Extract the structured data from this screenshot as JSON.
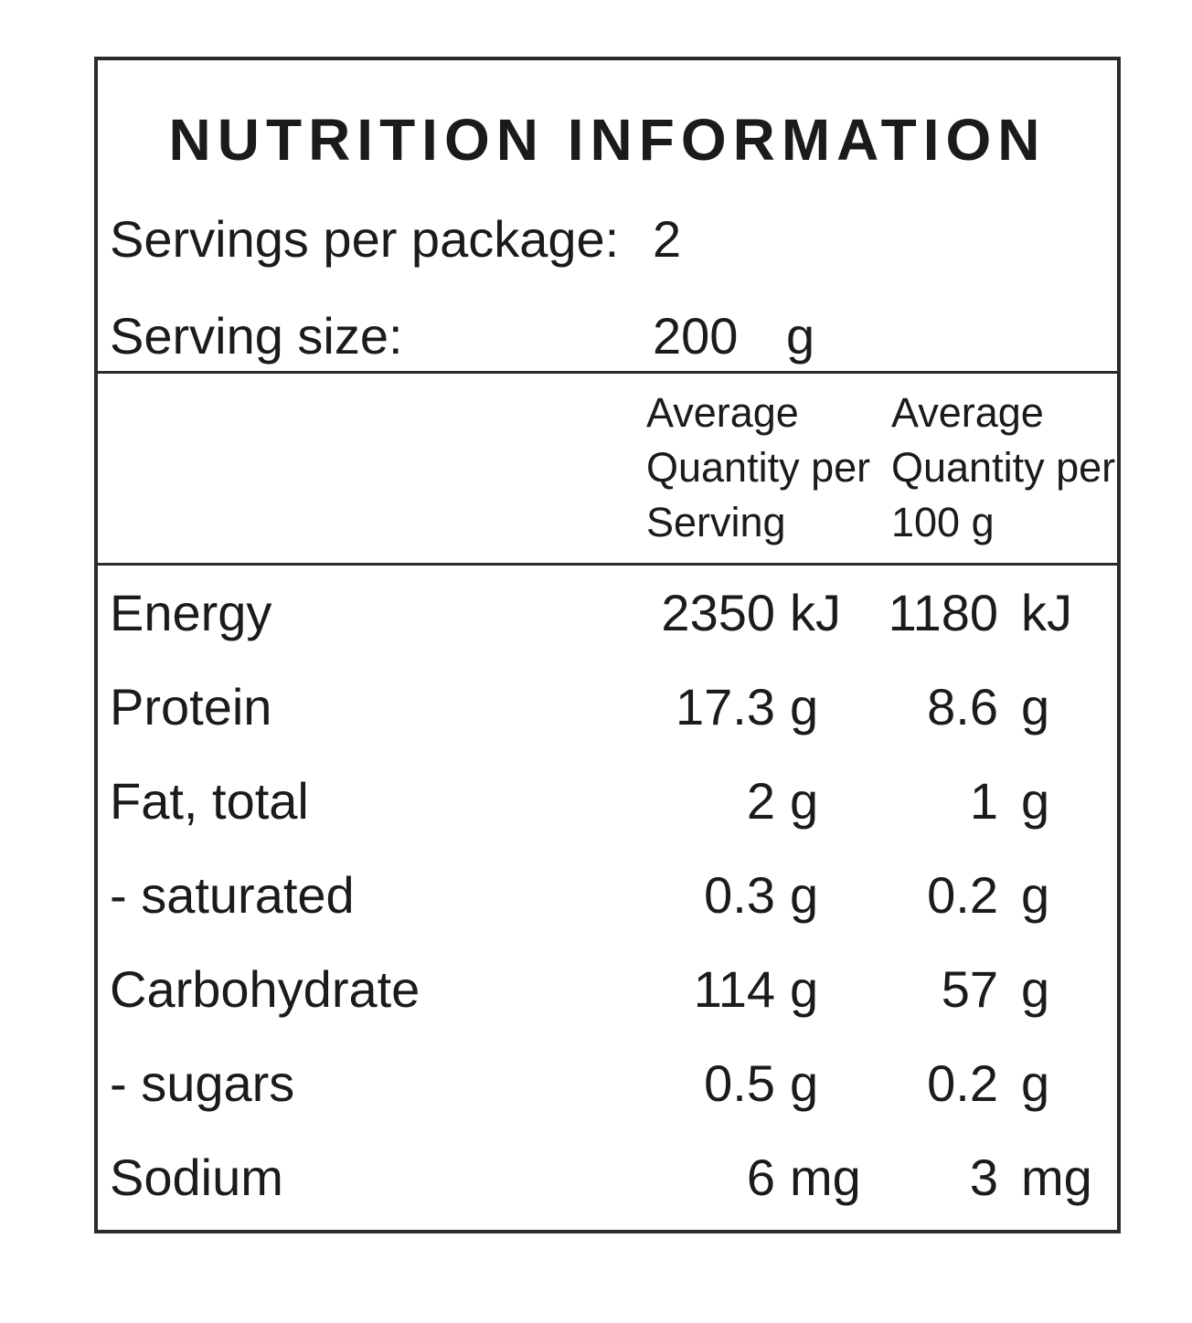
{
  "label": {
    "title": "NUTRITION INFORMATION",
    "servings_per_package": {
      "label": "Servings per package:",
      "value": "2"
    },
    "serving_size": {
      "label": "Serving size:",
      "value": "200",
      "unit": "g"
    },
    "columns": {
      "per_serving": [
        "Average",
        "Quantity per",
        "Serving"
      ],
      "per_100g": [
        "Average",
        "Quantity per",
        "100 g"
      ]
    },
    "rows": [
      {
        "nutrient": "Energy",
        "per_serving": "2350",
        "per_serving_unit": "kJ",
        "per_100g": "1180",
        "per_100g_unit": "kJ"
      },
      {
        "nutrient": "Protein",
        "per_serving": "17.3",
        "per_serving_unit": "g",
        "per_100g": "8.6",
        "per_100g_unit": "g"
      },
      {
        "nutrient": "Fat, total",
        "per_serving": "2",
        "per_serving_unit": "g",
        "per_100g": "1",
        "per_100g_unit": "g"
      },
      {
        "nutrient": "- saturated",
        "per_serving": "0.3",
        "per_serving_unit": "g",
        "per_100g": "0.2",
        "per_100g_unit": "g"
      },
      {
        "nutrient": "Carbohydrate",
        "per_serving": "114",
        "per_serving_unit": "g",
        "per_100g": "57",
        "per_100g_unit": "g"
      },
      {
        "nutrient": "- sugars",
        "per_serving": "0.5",
        "per_serving_unit": "g",
        "per_100g": "0.2",
        "per_100g_unit": "g"
      },
      {
        "nutrient": "Sodium",
        "per_serving": "6",
        "per_serving_unit": "mg",
        "per_100g": "3",
        "per_100g_unit": "mg"
      }
    ],
    "colors": {
      "text": "#1b1b1b",
      "border": "#2b2b2b",
      "background": "#ffffff"
    }
  }
}
